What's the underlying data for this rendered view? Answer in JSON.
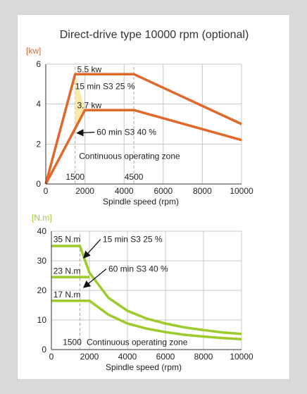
{
  "title": "Direct-drive type 10000 rpm (optional)",
  "colors": {
    "power": "#e0682a",
    "power_zone": "#fbe9a6",
    "torque": "#9ccc2c",
    "axis": "#333333",
    "grid": "#c8c8c8",
    "ref_line": "#aaaaaa",
    "background": "#d9d9d9",
    "card": "#ffffff"
  },
  "chart_data": [
    {
      "type": "line",
      "ylabel": "[kw]",
      "xlabel": "Spindle speed (rpm)",
      "xlim": [
        0,
        10000
      ],
      "ylim": [
        0,
        6
      ],
      "xticks": [
        0,
        2000,
        4000,
        6000,
        8000,
        10000
      ],
      "xtick_labels": [
        "0",
        "2000",
        "4000",
        "6000",
        "8000",
        "10000"
      ],
      "yticks": [
        0,
        2,
        4,
        6
      ],
      "ytick_labels": [
        "0",
        "2",
        "4",
        "6"
      ],
      "grid": true,
      "ref_lines": [
        {
          "x": 1500,
          "label": "1500"
        },
        {
          "x": 4500,
          "label": "4500"
        }
      ],
      "series": [
        {
          "name": "15 min S3 25 %",
          "x": [
            0,
            1500,
            4500,
            10000
          ],
          "y": [
            0,
            5.5,
            5.5,
            3.0
          ]
        },
        {
          "name": "60 min S3 40 %",
          "x": [
            0,
            2000,
            4500,
            10000
          ],
          "y": [
            0,
            3.7,
            3.7,
            2.2
          ]
        }
      ],
      "annotations": [
        {
          "text": "5.5 kw",
          "x": 1600,
          "y": 5.6
        },
        {
          "text": "15 min S3 25 %",
          "x": 1500,
          "y": 4.75
        },
        {
          "text": "3.7 kw",
          "x": 1600,
          "y": 3.8
        },
        {
          "text": "60 min S3 40 %",
          "x": 2600,
          "y": 2.45,
          "arrow_to": [
            1600,
            2.55
          ]
        },
        {
          "text": "Continuous operating zone",
          "x": 1700,
          "y": 1.25
        }
      ]
    },
    {
      "type": "line",
      "ylabel": "[N.m]",
      "xlabel": "Spindle speed (rpm)",
      "xlim": [
        0,
        10000
      ],
      "ylim": [
        0,
        40
      ],
      "xticks": [
        0,
        2000,
        4000,
        6000,
        8000,
        10000
      ],
      "xtick_labels": [
        "0",
        "2000",
        "4000",
        "6000",
        "8000",
        "10000"
      ],
      "yticks": [
        0,
        10,
        20,
        30,
        40
      ],
      "ytick_labels": [
        "0",
        "10",
        "20",
        "30",
        "40"
      ],
      "grid": true,
      "ref_lines": [
        {
          "x": 1500,
          "label": "1500"
        }
      ],
      "series": [
        {
          "name": "15 min S3 25 %",
          "x": [
            0,
            1500,
            2000,
            3000,
            4000,
            5000,
            6000,
            7000,
            8000,
            9000,
            10000
          ],
          "y": [
            35,
            35,
            26,
            17.5,
            13.1,
            10.5,
            8.8,
            7.5,
            6.6,
            5.8,
            5.3
          ]
        },
        {
          "name": "60 min S3 40 %",
          "x": [
            0,
            2000,
            3000,
            4000,
            5000,
            6000,
            7000,
            8000,
            9000,
            10000
          ],
          "y": [
            16.5,
            16.5,
            11.8,
            8.8,
            7.1,
            5.9,
            5.0,
            4.4,
            3.9,
            3.5
          ]
        }
      ],
      "annotations": [
        {
          "text": "35 N.m",
          "x": 100,
          "y": 36.3
        },
        {
          "text": "23 N.m",
          "x": 100,
          "y": 25.6
        },
        {
          "text": "17 N.m",
          "x": 100,
          "y": 17.6
        },
        {
          "text": "15 min S3 25 %",
          "x": 2700,
          "y": 36.3,
          "arrow_to": [
            1700,
            31
          ]
        },
        {
          "text": "60 min S3 40 %",
          "x": 3000,
          "y": 26.3,
          "arrow_to": [
            1700,
            21
          ]
        },
        {
          "text": "1500",
          "x": 600,
          "y": 1.5
        },
        {
          "text": "Continuous operating zone",
          "x": 1850,
          "y": 1.5
        }
      ],
      "markers": [
        {
          "x0": 0,
          "x1": 2000,
          "y": 24.5
        }
      ]
    }
  ]
}
